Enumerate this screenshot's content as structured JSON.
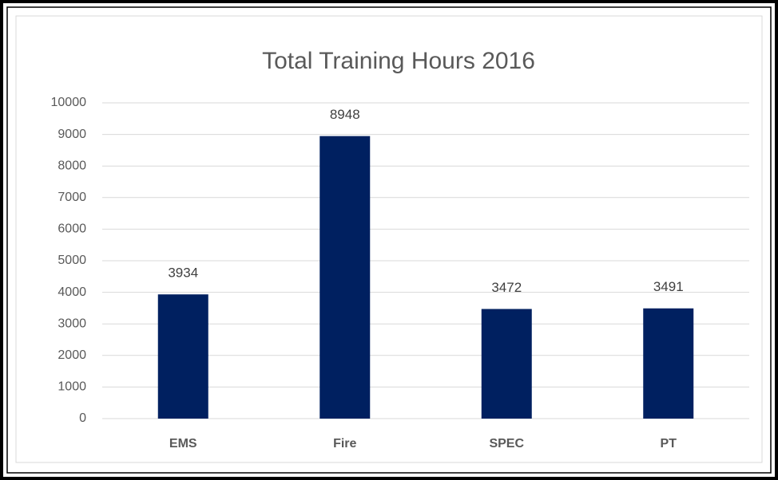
{
  "chart_data": {
    "type": "bar",
    "title": "Total Training Hours 2016",
    "categories": [
      "EMS",
      "Fire",
      "SPEC",
      "PT"
    ],
    "values": [
      3934,
      8948,
      3472,
      3491
    ],
    "color": "#002060",
    "ylim": [
      0,
      10000
    ],
    "yticks": [
      0,
      1000,
      2000,
      3000,
      4000,
      5000,
      6000,
      7000,
      8000,
      9000,
      10000
    ],
    "grid": true
  }
}
